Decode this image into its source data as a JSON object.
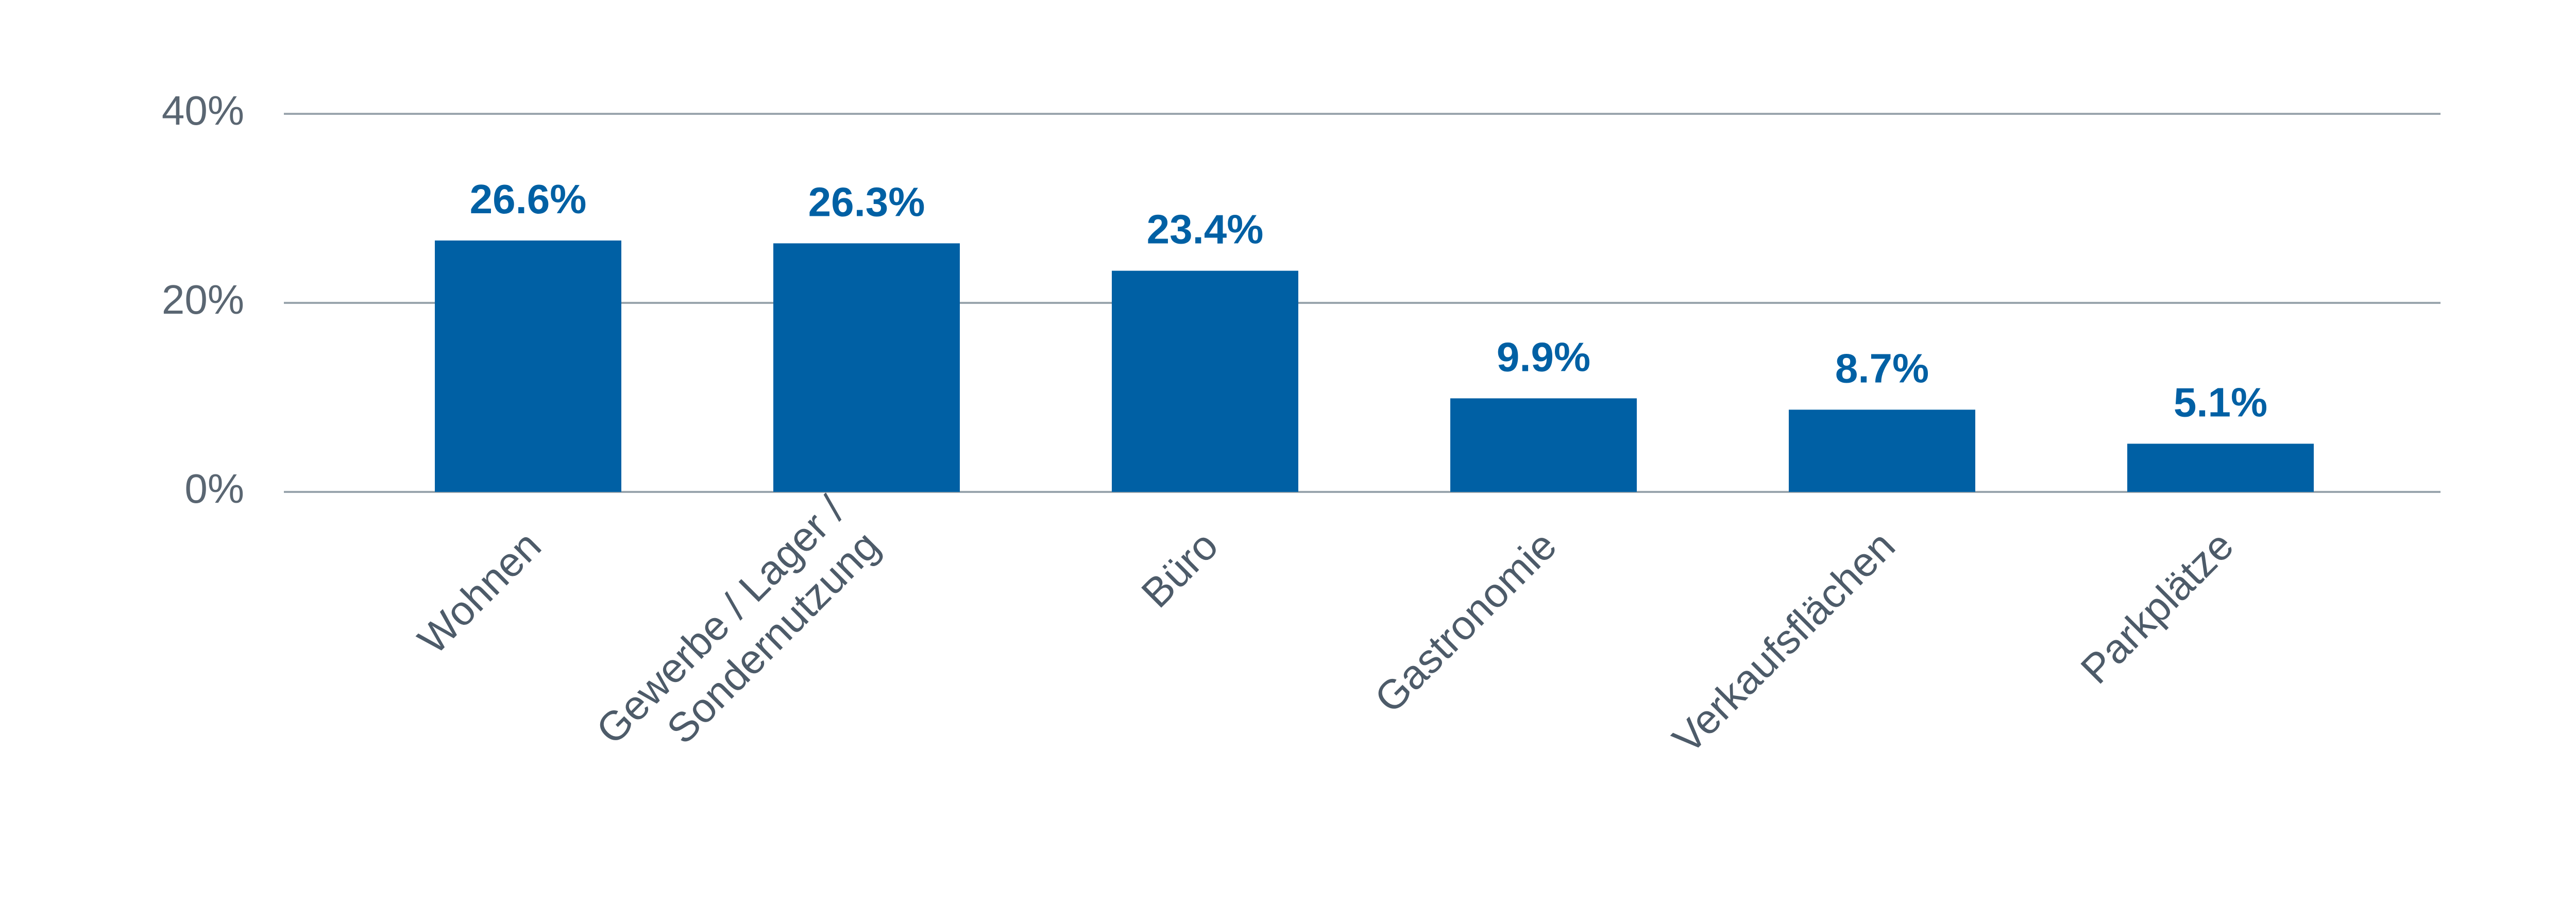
{
  "chart_data": {
    "type": "bar",
    "categories": [
      [
        "Wohnen"
      ],
      [
        "Gewerbe / Lager /",
        "Sondernutzung"
      ],
      [
        "Büro"
      ],
      [
        "Gastronomie"
      ],
      [
        "Verkaufsflächen"
      ],
      [
        "Parkplätze"
      ]
    ],
    "values": [
      26.6,
      26.3,
      23.4,
      9.9,
      8.7,
      5.1
    ],
    "value_labels": [
      "26.6%",
      "26.3%",
      "23.4%",
      "9.9%",
      "8.7%",
      "5.1%"
    ],
    "color": "#0060a4",
    "ylim": [
      0,
      40
    ],
    "yticks": [
      {
        "value": 0,
        "label": "0%"
      },
      {
        "value": 20,
        "label": "20%"
      },
      {
        "value": 40,
        "label": "40%"
      }
    ],
    "grid": true
  }
}
